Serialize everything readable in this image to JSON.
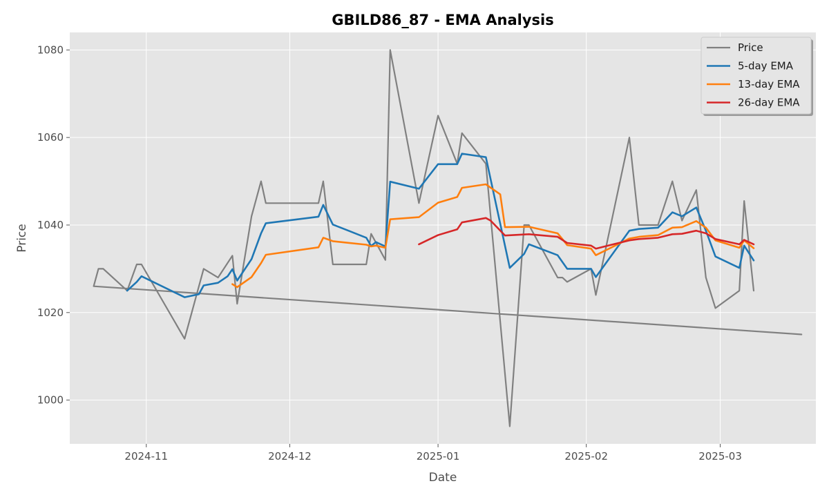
{
  "chart_data": {
    "type": "line",
    "title": "GBILD86_87 - EMA Analysis",
    "xlabel": "Date",
    "ylabel": "Price",
    "x_type": "date",
    "xlim": [
      "2024-10-16",
      "2025-03-21"
    ],
    "ylim": [
      990,
      1084
    ],
    "x_ticks": [
      {
        "date": "2024-11-01",
        "label": "2024-11"
      },
      {
        "date": "2024-12-01",
        "label": "2024-12"
      },
      {
        "date": "2025-01-01",
        "label": "2025-01"
      },
      {
        "date": "2025-02-01",
        "label": "2025-02"
      },
      {
        "date": "2025-03-01",
        "label": "2025-03"
      }
    ],
    "y_ticks": [
      1000,
      1020,
      1040,
      1060,
      1080
    ],
    "grid": true,
    "legend_position": "top-right",
    "background": "#e5e5e5",
    "series": [
      {
        "name": "Price",
        "color": "#808080",
        "points": [
          [
            "2025-03-18",
            1015
          ],
          [
            "2024-10-21",
            1026
          ],
          [
            "2024-10-22",
            1030
          ],
          [
            "2024-10-23",
            1030
          ],
          [
            "2024-10-28",
            1025
          ],
          [
            "2024-10-30",
            1031
          ],
          [
            "2024-10-31",
            1031
          ],
          [
            "2024-11-09",
            1014
          ],
          [
            "2024-11-13",
            1030
          ],
          [
            "2024-11-16",
            1028
          ],
          [
            "2024-11-19",
            1033
          ],
          [
            "2024-11-20",
            1022
          ],
          [
            "2024-11-23",
            1042
          ],
          [
            "2024-11-25",
            1050
          ],
          [
            "2024-11-26",
            1045
          ],
          [
            "2024-12-07",
            1045
          ],
          [
            "2024-12-08",
            1050
          ],
          [
            "2024-12-10",
            1031
          ],
          [
            "2024-12-17",
            1031
          ],
          [
            "2024-12-18",
            1038
          ],
          [
            "2024-12-21",
            1032
          ],
          [
            "2024-12-22",
            1080
          ],
          [
            "2024-12-28",
            1045
          ],
          [
            "2025-01-01",
            1065
          ],
          [
            "2025-01-05",
            1054
          ],
          [
            "2025-01-06",
            1061
          ],
          [
            "2025-01-11",
            1054
          ],
          [
            "2025-01-16",
            994
          ],
          [
            "2025-01-19",
            1040
          ],
          [
            "2025-01-20",
            1040
          ],
          [
            "2025-01-26",
            1028
          ],
          [
            "2025-01-27",
            1028
          ],
          [
            "2025-01-28",
            1027
          ],
          [
            "2025-02-02",
            1030
          ],
          [
            "2025-02-03",
            1024
          ],
          [
            "2025-02-10",
            1060
          ],
          [
            "2025-02-12",
            1040
          ],
          [
            "2025-02-16",
            1040
          ],
          [
            "2025-02-19",
            1050
          ],
          [
            "2025-02-21",
            1041
          ],
          [
            "2025-02-24",
            1048
          ],
          [
            "2025-02-26",
            1028
          ],
          [
            "2025-02-28",
            1021
          ],
          [
            "2025-03-05",
            1025
          ],
          [
            "2025-03-06",
            1045.5
          ],
          [
            "2025-03-08",
            1025
          ]
        ]
      },
      {
        "name": "5-day EMA",
        "color": "#1f77b4",
        "points": [
          [
            "2024-10-28",
            1025
          ],
          [
            "2024-10-30",
            1027
          ],
          [
            "2024-10-31",
            1028.3
          ],
          [
            "2024-11-09",
            1023.5
          ],
          [
            "2024-11-12",
            1024.2
          ],
          [
            "2024-11-13",
            1026.2
          ],
          [
            "2024-11-16",
            1026.8
          ],
          [
            "2024-11-18",
            1028.3
          ],
          [
            "2024-11-19",
            1029.9
          ],
          [
            "2024-11-20",
            1027.3
          ],
          [
            "2024-11-23",
            1032.2
          ],
          [
            "2024-11-25",
            1038.1
          ],
          [
            "2024-11-26",
            1040.4
          ],
          [
            "2024-12-07",
            1041.9
          ],
          [
            "2024-12-08",
            1044.6
          ],
          [
            "2024-12-10",
            1040.1
          ],
          [
            "2024-12-17",
            1037.1
          ],
          [
            "2024-12-18",
            1035.2
          ],
          [
            "2024-12-19",
            1036.1
          ],
          [
            "2024-12-21",
            1035.1
          ],
          [
            "2024-12-22",
            1049.9
          ],
          [
            "2024-12-28",
            1048.3
          ],
          [
            "2025-01-01",
            1053.9
          ],
          [
            "2025-01-05",
            1053.9
          ],
          [
            "2025-01-06",
            1056.3
          ],
          [
            "2025-01-11",
            1055.5
          ],
          [
            "2025-01-16",
            1030.2
          ],
          [
            "2025-01-19",
            1033.4
          ],
          [
            "2025-01-20",
            1035.6
          ],
          [
            "2025-01-26",
            1033.1
          ],
          [
            "2025-01-28",
            1030
          ],
          [
            "2025-02-02",
            1030
          ],
          [
            "2025-02-03",
            1028.1
          ],
          [
            "2025-02-10",
            1038.7
          ],
          [
            "2025-02-12",
            1039.1
          ],
          [
            "2025-02-16",
            1039.4
          ],
          [
            "2025-02-19",
            1042.9
          ],
          [
            "2025-02-21",
            1042
          ],
          [
            "2025-02-24",
            1044
          ],
          [
            "2025-02-26",
            1038.7
          ],
          [
            "2025-02-28",
            1032.8
          ],
          [
            "2025-03-05",
            1030.2
          ],
          [
            "2025-03-06",
            1035.3
          ],
          [
            "2025-03-08",
            1031.9
          ]
        ]
      },
      {
        "name": "13-day EMA",
        "color": "#ff7f0e",
        "points": [
          [
            "2024-11-19",
            1026.5
          ],
          [
            "2024-11-20",
            1025.8
          ],
          [
            "2024-11-23",
            1028.1
          ],
          [
            "2024-11-25",
            1031.3
          ],
          [
            "2024-11-26",
            1033.2
          ],
          [
            "2024-12-07",
            1034.9
          ],
          [
            "2024-12-08",
            1037.1
          ],
          [
            "2024-12-10",
            1036.3
          ],
          [
            "2024-12-17",
            1035.5
          ],
          [
            "2024-12-18",
            1035.1
          ],
          [
            "2024-12-19",
            1035.3
          ],
          [
            "2024-12-21",
            1034.8
          ],
          [
            "2024-12-22",
            1041.3
          ],
          [
            "2024-12-28",
            1041.8
          ],
          [
            "2025-01-01",
            1045.1
          ],
          [
            "2025-01-05",
            1046.4
          ],
          [
            "2025-01-06",
            1048.5
          ],
          [
            "2025-01-11",
            1049.3
          ],
          [
            "2025-01-14",
            1047
          ],
          [
            "2025-01-15",
            1039.5
          ],
          [
            "2025-01-20",
            1039.6
          ],
          [
            "2025-01-26",
            1038.1
          ],
          [
            "2025-01-27",
            1036.8
          ],
          [
            "2025-01-28",
            1035.4
          ],
          [
            "2025-02-02",
            1034.6
          ],
          [
            "2025-02-03",
            1033.1
          ],
          [
            "2025-02-10",
            1036.9
          ],
          [
            "2025-02-12",
            1037.3
          ],
          [
            "2025-02-16",
            1037.7
          ],
          [
            "2025-02-19",
            1039.4
          ],
          [
            "2025-02-21",
            1039.5
          ],
          [
            "2025-02-24",
            1040.9
          ],
          [
            "2025-02-26",
            1039.4
          ],
          [
            "2025-02-28",
            1036.5
          ],
          [
            "2025-03-05",
            1034.8
          ],
          [
            "2025-03-06",
            1036.5
          ],
          [
            "2025-03-08",
            1034.7
          ]
        ]
      },
      {
        "name": "26-day EMA",
        "color": "#d62728",
        "points": [
          [
            "2024-12-28",
            1035.6
          ],
          [
            "2025-01-01",
            1037.7
          ],
          [
            "2025-01-05",
            1039
          ],
          [
            "2025-01-06",
            1040.6
          ],
          [
            "2025-01-11",
            1041.6
          ],
          [
            "2025-01-12",
            1041
          ],
          [
            "2025-01-15",
            1037.6
          ],
          [
            "2025-01-20",
            1037.9
          ],
          [
            "2025-01-26",
            1037.3
          ],
          [
            "2025-01-28",
            1035.9
          ],
          [
            "2025-02-02",
            1035.3
          ],
          [
            "2025-02-03",
            1034.6
          ],
          [
            "2025-02-10",
            1036.5
          ],
          [
            "2025-02-12",
            1036.8
          ],
          [
            "2025-02-16",
            1037.1
          ],
          [
            "2025-02-19",
            1037.9
          ],
          [
            "2025-02-21",
            1038
          ],
          [
            "2025-02-24",
            1038.7
          ],
          [
            "2025-02-26",
            1038.1
          ],
          [
            "2025-02-28",
            1036.8
          ],
          [
            "2025-03-05",
            1035.6
          ],
          [
            "2025-03-06",
            1036.6
          ],
          [
            "2025-03-08",
            1035.6
          ]
        ]
      }
    ]
  }
}
